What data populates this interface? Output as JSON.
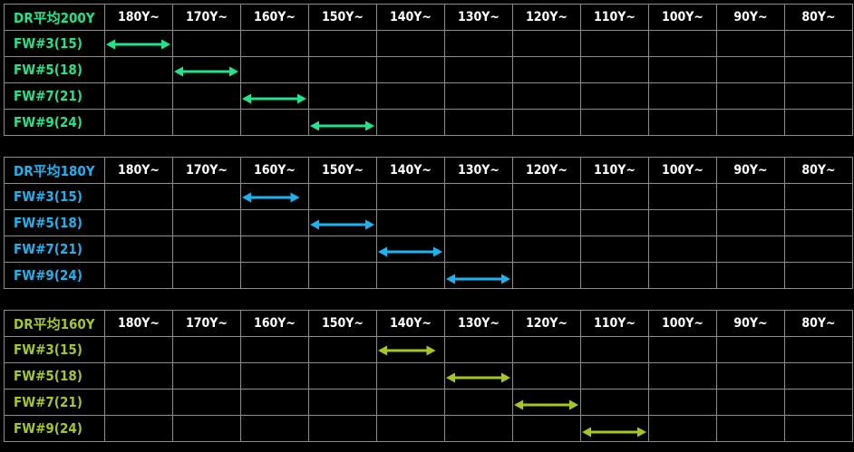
{
  "column_headers": [
    "180Y~",
    "170Y~",
    "160Y~",
    "150Y~",
    "140Y~",
    "130Y~",
    "120Y~",
    "110Y~",
    "100Y~",
    "90Y~",
    "80Y~"
  ],
  "chart_data": [
    {
      "type": "table",
      "title": "DR平均200Y",
      "color": "#1ee58c",
      "columns": [
        "180Y~",
        "170Y~",
        "160Y~",
        "150Y~",
        "140Y~",
        "130Y~",
        "120Y~",
        "110Y~",
        "100Y~",
        "90Y~",
        "80Y~"
      ],
      "rows": [
        {
          "club": "FW#3(15)",
          "range": [
            185,
            175
          ]
        },
        {
          "club": "FW#5(18)",
          "range": [
            175,
            165
          ]
        },
        {
          "club": "FW#7(21)",
          "range": [
            165,
            155
          ]
        },
        {
          "club": "FW#9(24)",
          "range": [
            155,
            145
          ]
        }
      ]
    },
    {
      "type": "table",
      "title": "DR平均180Y",
      "color": "#1ab4f0",
      "columns": [
        "180Y~",
        "170Y~",
        "160Y~",
        "150Y~",
        "140Y~",
        "130Y~",
        "120Y~",
        "110Y~",
        "100Y~",
        "90Y~",
        "80Y~"
      ],
      "rows": [
        {
          "club": "FW#3(15)",
          "range": [
            165,
            156
          ]
        },
        {
          "club": "FW#5(18)",
          "range": [
            155,
            145
          ]
        },
        {
          "club": "FW#7(21)",
          "range": [
            145,
            135
          ]
        },
        {
          "club": "FW#9(24)",
          "range": [
            135,
            125
          ]
        }
      ]
    },
    {
      "type": "table",
      "title": "DR平均160Y",
      "color": "#a6c81e",
      "columns": [
        "180Y~",
        "170Y~",
        "160Y~",
        "150Y~",
        "140Y~",
        "130Y~",
        "120Y~",
        "110Y~",
        "100Y~",
        "90Y~",
        "80Y~"
      ],
      "rows": [
        {
          "club": "FW#3(15)",
          "range": [
            145,
            136
          ]
        },
        {
          "club": "FW#5(18)",
          "range": [
            135,
            125
          ]
        },
        {
          "club": "FW#7(21)",
          "range": [
            125,
            115
          ]
        },
        {
          "club": "FW#9(24)",
          "range": [
            115,
            105
          ]
        }
      ]
    }
  ]
}
